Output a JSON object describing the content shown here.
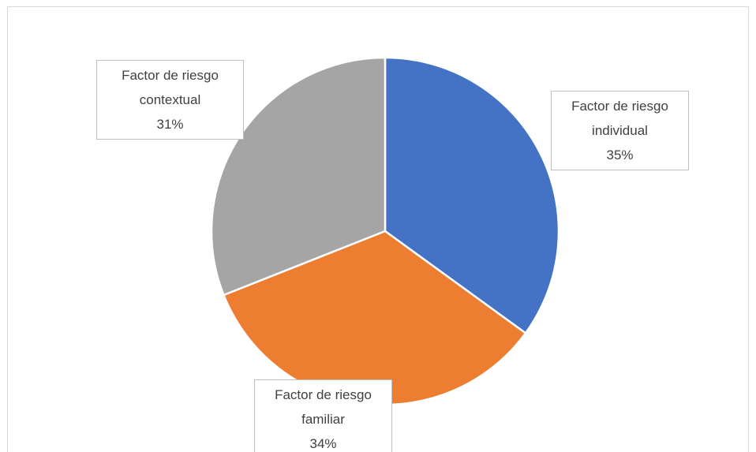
{
  "chart_data": {
    "type": "pie",
    "categories": [
      "Factor de riesgo individual",
      "Factor de riesgo familiar",
      "Factor de riesgo contextual"
    ],
    "values": [
      35,
      34,
      31
    ],
    "value_labels": [
      "35%",
      "34%",
      "31%"
    ],
    "colors": [
      "#4472c4",
      "#ed7d31",
      "#a5a5a5"
    ]
  }
}
